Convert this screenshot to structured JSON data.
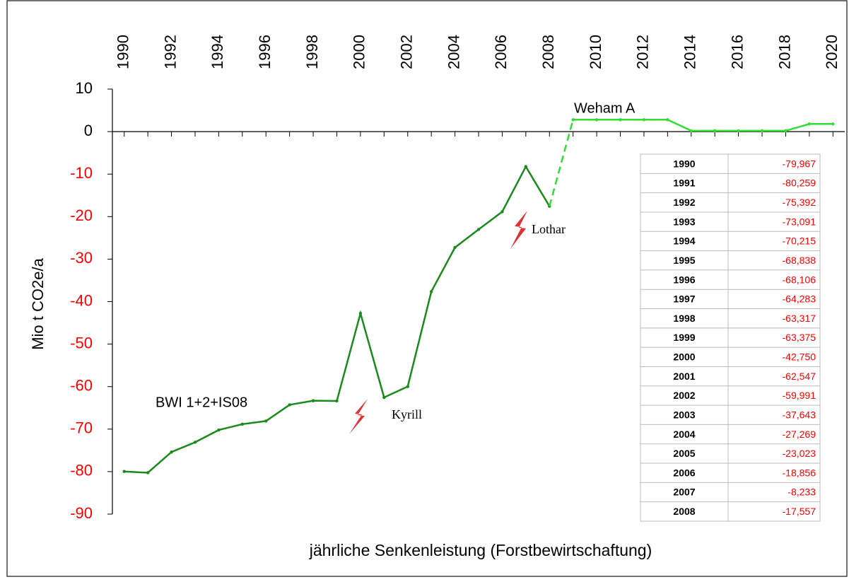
{
  "chart_data": {
    "type": "line",
    "x": [
      1990,
      1991,
      1992,
      1993,
      1994,
      1995,
      1996,
      1997,
      1998,
      1999,
      2000,
      2001,
      2002,
      2003,
      2004,
      2005,
      2006,
      2007,
      2008,
      2009,
      2010,
      2011,
      2012,
      2013,
      2014,
      2015,
      2016,
      2017,
      2018,
      2019,
      2020
    ],
    "series": [
      {
        "name": "BWI 1+2+IS08",
        "color": "#1a8a1a",
        "values": [
          -79.967,
          -80.259,
          -75.392,
          -73.091,
          -70.215,
          -68.838,
          -68.106,
          -64.283,
          -63.317,
          -63.375,
          -42.75,
          -62.547,
          -59.991,
          -37.643,
          -27.269,
          -23.023,
          -18.856,
          -8.233,
          -17.557,
          null,
          null,
          null,
          null,
          null,
          null,
          null,
          null,
          null,
          null,
          null,
          null
        ],
        "value_labels": [
          "-79,967",
          "-80,259",
          "-75,392",
          "-73,091",
          "-70,215",
          "-68,838",
          "-68,106",
          "-64,283",
          "-63,317",
          "-63,375",
          "-42,750",
          "-62,547",
          "-59,991",
          "-37,643",
          "-27,269",
          "-23,023",
          "-18,856",
          "-8,233",
          "-17,557",
          null,
          null,
          null,
          null,
          null,
          null,
          null,
          null,
          null,
          null,
          null,
          null
        ]
      },
      {
        "name": "Weham A",
        "color": "#33dd33",
        "values": [
          null,
          null,
          null,
          null,
          null,
          null,
          null,
          null,
          null,
          null,
          null,
          null,
          null,
          null,
          null,
          null,
          null,
          null,
          null,
          2.8,
          2.8,
          2.8,
          2.8,
          2.8,
          0.2,
          0.2,
          0.2,
          0.2,
          0.2,
          1.8,
          1.8
        ]
      }
    ],
    "xlim": [
      1989.5,
      2020.5
    ],
    "xticks": [
      1990,
      1992,
      1994,
      1996,
      1998,
      2000,
      2002,
      2004,
      2006,
      2008,
      2010,
      2012,
      2014,
      2016,
      2018,
      2020
    ],
    "ylim": [
      -90,
      10
    ],
    "yticks": [
      10,
      0,
      -10,
      -20,
      -30,
      -40,
      -50,
      -60,
      -70,
      -80,
      -90
    ],
    "negative_tick_color": "#ff0000",
    "y_label": "Mio t CO2e/a",
    "x_label": "jährliche Senkenleistung (Forstbewirtschaftung)",
    "annotations": [
      "Kyrill",
      "Lothar"
    ]
  }
}
